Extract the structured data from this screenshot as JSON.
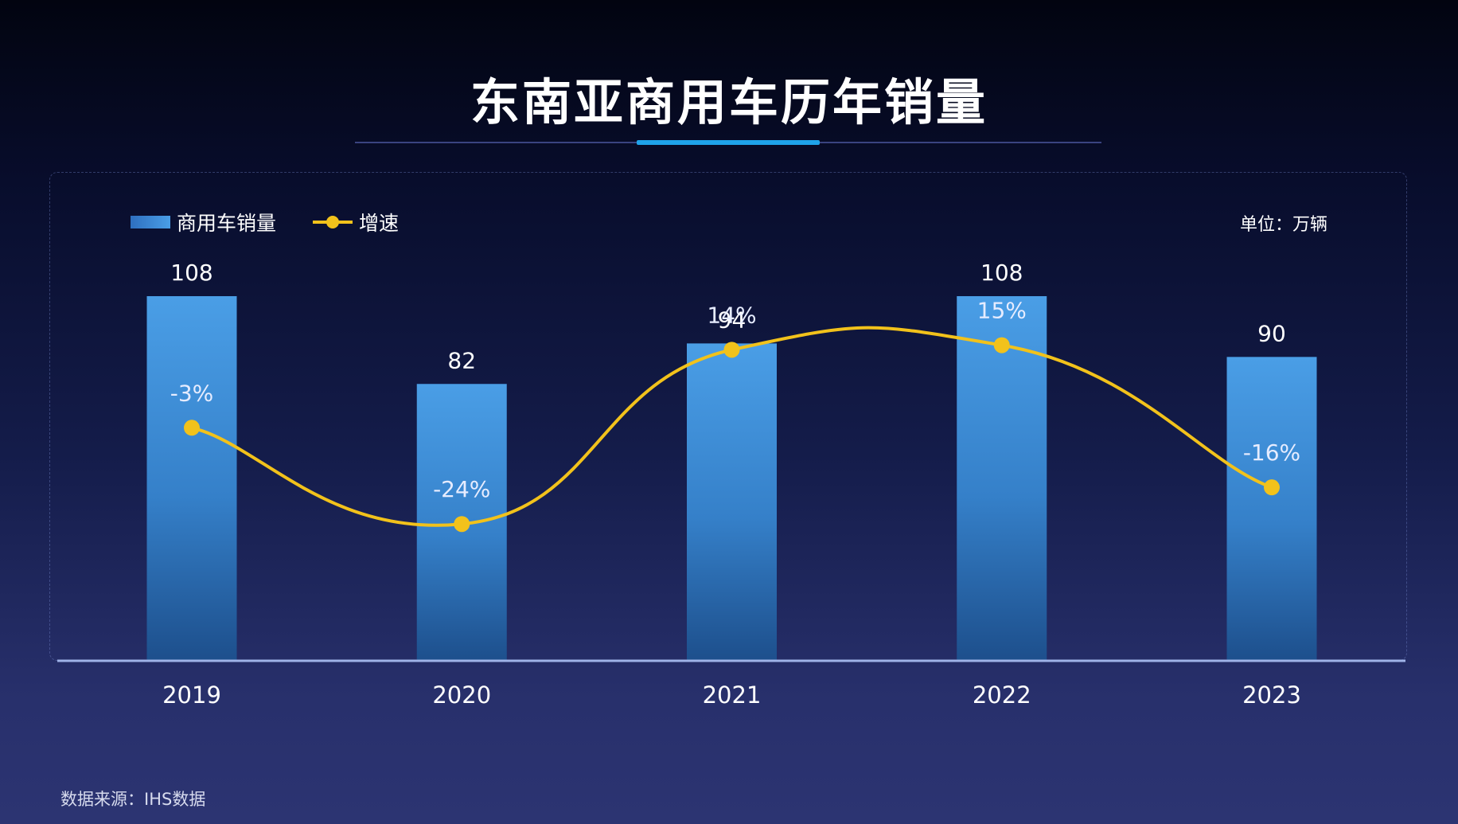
{
  "chart_data": {
    "type": "bar",
    "title": "东南亚商用车历年销量",
    "categories": [
      "2019",
      "2020",
      "2021",
      "2022",
      "2023"
    ],
    "series": [
      {
        "name": "商用车销量",
        "type": "bar",
        "values": [
          108,
          82,
          94,
          108,
          90
        ],
        "labels": [
          "108",
          "82",
          "94",
          "108",
          "90"
        ]
      },
      {
        "name": "增速",
        "type": "line",
        "values": [
          -3,
          -24,
          14,
          15,
          -16
        ],
        "labels": [
          "-3%",
          "-24%",
          "14%",
          "15%",
          "-16%"
        ]
      }
    ],
    "unit": "单位：万辆",
    "source": "数据来源：IHS数据",
    "legend_position": "top-left",
    "grid": false,
    "colors": {
      "bar_top": "#4a9ee6",
      "bar_bottom": "#1d4f8c",
      "line": "#f2c21b",
      "axis": "#9fb3e8",
      "accent": "#1fa3ea"
    }
  }
}
